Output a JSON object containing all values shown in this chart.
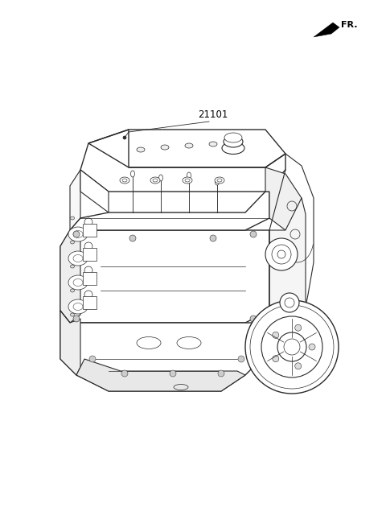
{
  "background_color": "#ffffff",
  "fr_label": "FR.",
  "part_label": "21101",
  "line_color": "#2a2a2a",
  "label_color": "#000000",
  "fig_width": 4.8,
  "fig_height": 6.56,
  "dpi": 100
}
